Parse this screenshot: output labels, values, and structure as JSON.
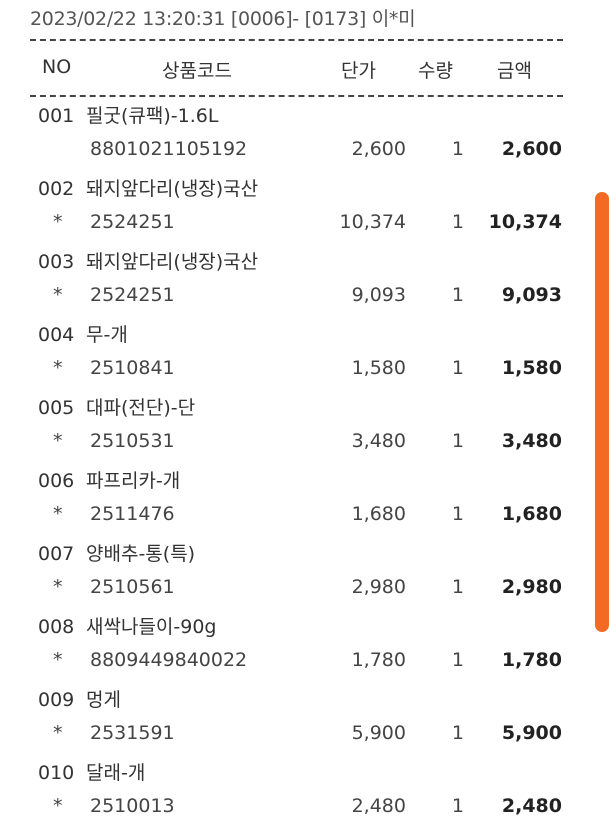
{
  "header": {
    "title": "2023/02/22 13:20:31 [0006]- [0173] 이*미"
  },
  "columns": {
    "no": "NO",
    "code": "상품코드",
    "price": "단가",
    "qty": "수량",
    "amount": "금액"
  },
  "items": [
    {
      "no": "001",
      "name": "필굿(큐팩)-1.6L",
      "mark": "",
      "code": "8801021105192",
      "price": "2,600",
      "qty": "1",
      "amount": "2,600"
    },
    {
      "no": "002",
      "name": "돼지앞다리(냉장)국산",
      "mark": "*",
      "code": "2524251",
      "price": "10,374",
      "qty": "1",
      "amount": "10,374"
    },
    {
      "no": "003",
      "name": "돼지앞다리(냉장)국산",
      "mark": "*",
      "code": "2524251",
      "price": "9,093",
      "qty": "1",
      "amount": "9,093"
    },
    {
      "no": "004",
      "name": "무-개",
      "mark": "*",
      "code": "2510841",
      "price": "1,580",
      "qty": "1",
      "amount": "1,580"
    },
    {
      "no": "005",
      "name": "대파(전단)-단",
      "mark": "*",
      "code": "2510531",
      "price": "3,480",
      "qty": "1",
      "amount": "3,480"
    },
    {
      "no": "006",
      "name": "파프리카-개",
      "mark": "*",
      "code": "2511476",
      "price": "1,680",
      "qty": "1",
      "amount": "1,680"
    },
    {
      "no": "007",
      "name": "양배추-통(특)",
      "mark": "*",
      "code": "2510561",
      "price": "2,980",
      "qty": "1",
      "amount": "2,980"
    },
    {
      "no": "008",
      "name": "새싹나들이-90g",
      "mark": "*",
      "code": "8809449840022",
      "price": "1,780",
      "qty": "1",
      "amount": "1,780"
    },
    {
      "no": "009",
      "name": "멍게",
      "mark": "*",
      "code": "2531591",
      "price": "5,900",
      "qty": "1",
      "amount": "5,900"
    },
    {
      "no": "010",
      "name": "달래-개",
      "mark": "*",
      "code": "2510013",
      "price": "2,480",
      "qty": "1",
      "amount": "2,480"
    }
  ],
  "colors": {
    "scrollbar": "#f26a24"
  }
}
